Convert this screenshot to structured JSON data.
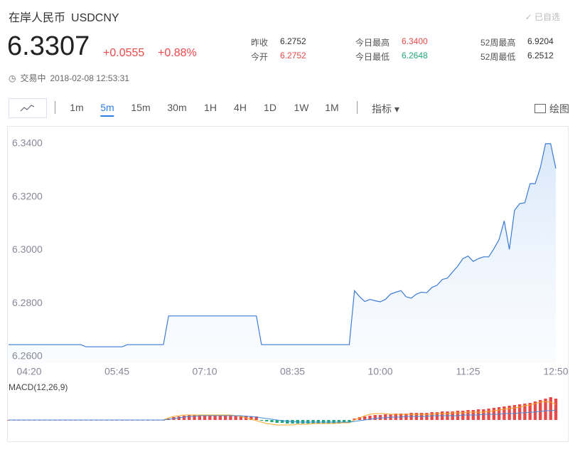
{
  "header": {
    "title": "在岸人民币",
    "symbol": "USDCNY",
    "selected": "已自选",
    "price": "6.3307",
    "change": "+0.0555",
    "change_pct": "+0.88%",
    "status": "交易中",
    "time": "2018-02-08 12:53:31"
  },
  "stats": [
    {
      "label": "昨收",
      "value": "6.2752",
      "color": "#333333"
    },
    {
      "label": "今开",
      "value": "6.2752",
      "color": "#e84a4a"
    },
    {
      "label": "今日最高",
      "value": "6.3400",
      "color": "#e84a4a"
    },
    {
      "label": "今日最低",
      "value": "6.2648",
      "color": "#21a777"
    },
    {
      "label": "52周最高",
      "value": "6.9204",
      "color": "#333333"
    },
    {
      "label": "52周最低",
      "value": "6.2512",
      "color": "#333333"
    }
  ],
  "toolbar": {
    "periods": [
      "1m",
      "5m",
      "15m",
      "30m",
      "1H",
      "4H",
      "1D",
      "1W",
      "1M"
    ],
    "active": "5m",
    "indicator": "指标",
    "draw": "绘图"
  },
  "chart_data": [
    {
      "type": "line",
      "color": "#3a7bd5",
      "categories": [
        null,
        null,
        null,
        null,
        "04:20",
        null,
        null,
        null,
        null,
        null,
        null,
        null,
        null,
        null,
        null,
        null,
        null,
        null,
        null,
        null,
        null,
        "05:45",
        null,
        null,
        null,
        null,
        null,
        null,
        null,
        null,
        null,
        null,
        null,
        null,
        null,
        null,
        null,
        null,
        "07:10",
        null,
        null,
        null,
        null,
        null,
        null,
        null,
        null,
        null,
        null,
        null,
        null,
        null,
        null,
        null,
        null,
        "08:35",
        null,
        null,
        null,
        null,
        null,
        null,
        null,
        null,
        null,
        null,
        null,
        null,
        null,
        null,
        null,
        null,
        "10:00",
        null,
        null,
        null,
        null,
        null,
        null,
        null,
        null,
        null,
        null,
        null,
        null,
        null,
        null,
        null,
        null,
        "11:25",
        null,
        null,
        null,
        null,
        null,
        null,
        null,
        null,
        null,
        null,
        null,
        null,
        null,
        null,
        null,
        null,
        "12:50"
      ],
      "values": [
        6.2645,
        6.2645,
        6.2645,
        6.2645,
        6.2645,
        6.2645,
        6.2645,
        6.2645,
        6.2645,
        6.2645,
        6.2645,
        6.2645,
        6.2645,
        6.2645,
        6.2645,
        6.2637,
        6.2637,
        6.2637,
        6.2637,
        6.2637,
        6.2637,
        6.2637,
        6.2637,
        6.2645,
        6.2645,
        6.2645,
        6.2645,
        6.2645,
        6.2645,
        6.2645,
        6.2645,
        6.2753,
        6.2753,
        6.2753,
        6.2753,
        6.2753,
        6.2753,
        6.2753,
        6.2753,
        6.2753,
        6.2753,
        6.2753,
        6.2753,
        6.2753,
        6.2753,
        6.2753,
        6.2753,
        6.2753,
        6.2753,
        6.2645,
        6.2645,
        6.2645,
        6.2645,
        6.2645,
        6.2645,
        6.2645,
        6.2645,
        6.2645,
        6.2645,
        6.2645,
        6.2645,
        6.2645,
        6.2645,
        6.2645,
        6.2645,
        6.2645,
        6.2645,
        6.2848,
        6.2825,
        6.2807,
        6.2815,
        6.281,
        6.2806,
        6.2815,
        6.2835,
        6.2842,
        6.2848,
        6.2825,
        6.282,
        6.2835,
        6.2842,
        6.284,
        6.286,
        6.2868,
        6.289,
        6.2895,
        6.2918,
        6.294,
        6.2968,
        6.2978,
        6.2958,
        6.2968,
        6.2975,
        6.2975,
        6.3005,
        6.304,
        6.311,
        6.3003,
        6.315,
        6.3175,
        6.3178,
        6.325,
        6.325,
        6.331,
        6.34,
        6.34,
        6.3307
      ],
      "ylim": [
        6.2576,
        6.3464
      ],
      "yticks": [
        {
          "value": 6.26,
          "label": "6.2600"
        },
        {
          "value": 6.28,
          "label": "6.2800"
        },
        {
          "value": 6.3,
          "label": "6.3000"
        },
        {
          "value": 6.32,
          "label": "6.3200"
        },
        {
          "value": 6.34,
          "label": "6.3400"
        }
      ]
    },
    {
      "type": "macd",
      "title": "MACD(12,26,9)",
      "ylim": [
        -34,
        34
      ],
      "histogram": {
        "up_color": "#e84a4a",
        "down_color": "#21a777",
        "values": [
          0,
          0,
          0,
          0,
          0,
          0,
          0,
          0,
          0,
          0,
          0,
          0,
          0,
          0,
          0,
          0,
          0,
          0,
          0,
          0,
          0,
          0,
          0,
          0,
          0,
          0,
          0,
          0,
          0,
          0,
          0,
          2,
          4,
          5,
          6,
          7,
          7,
          7,
          7,
          7,
          7,
          7,
          7,
          7,
          6,
          6,
          6,
          5,
          5,
          -1,
          -2,
          -3,
          -4,
          -4,
          -5,
          -5,
          -5,
          -5,
          -5,
          -5,
          -5,
          -5,
          -5,
          -5,
          -5,
          -4,
          -4,
          2,
          4,
          5,
          6,
          7,
          7,
          8,
          8,
          9,
          9,
          9,
          10,
          10,
          10,
          10,
          11,
          11,
          12,
          12,
          12,
          13,
          13,
          14,
          14,
          15,
          15,
          16,
          17,
          18,
          19,
          20,
          21,
          22,
          23,
          24,
          26,
          28,
          30,
          32,
          30
        ]
      },
      "lines": [
        {
          "color": "#f5a623",
          "values": [
            0,
            0,
            0,
            0,
            0,
            0,
            0,
            0,
            0,
            0,
            0,
            0,
            0,
            0,
            0,
            0,
            0,
            0,
            0,
            0,
            0,
            0,
            0,
            0,
            0,
            0,
            0,
            0,
            0,
            0,
            0,
            3,
            5,
            6,
            7,
            7,
            7,
            7,
            7,
            7,
            7,
            7,
            7,
            7,
            6,
            5,
            3,
            1,
            -1,
            -3,
            -5,
            -6,
            -7,
            -7,
            -7,
            -7,
            -6,
            -6,
            -6,
            -5,
            -5,
            -5,
            -5,
            -5,
            -4,
            -4,
            -4,
            0,
            3,
            6,
            8,
            9,
            9,
            9,
            8,
            8,
            8,
            8,
            8,
            8,
            8,
            8,
            8,
            9,
            9,
            9,
            10,
            10,
            10,
            11,
            11,
            11,
            11,
            12,
            13,
            14,
            15,
            16,
            17,
            18,
            20,
            21,
            23,
            25,
            26,
            25,
            22
          ]
        },
        {
          "color": "#3b8ee0",
          "values": [
            0,
            0,
            0,
            0,
            0,
            0,
            0,
            0,
            0,
            0,
            0,
            0,
            0,
            0,
            0,
            0,
            0,
            0,
            0,
            0,
            0,
            0,
            0,
            0,
            0,
            0,
            0,
            0,
            0,
            0,
            0,
            1,
            2,
            3,
            4,
            5,
            5,
            6,
            6,
            6,
            6,
            6,
            6,
            6,
            6,
            6,
            5,
            5,
            4,
            3,
            2,
            1,
            0,
            -1,
            -2,
            -2,
            -3,
            -3,
            -3,
            -3,
            -3,
            -3,
            -3,
            -3,
            -3,
            -3,
            -3,
            -2,
            -1,
            0,
            1,
            2,
            3,
            3,
            4,
            4,
            4,
            5,
            5,
            5,
            5,
            5,
            6,
            6,
            6,
            6,
            6,
            6,
            7,
            7,
            7,
            7,
            8,
            8,
            8,
            8,
            9,
            9,
            9,
            10,
            10,
            11,
            11,
            12,
            13,
            13,
            14
          ]
        }
      ]
    }
  ]
}
